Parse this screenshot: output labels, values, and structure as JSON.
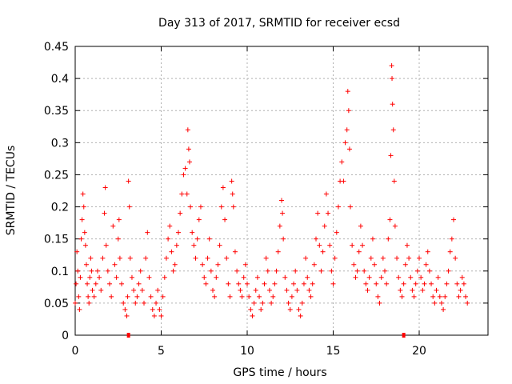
{
  "chart_data": {
    "type": "scatter",
    "title": "Day 313 of 2017, SRMTID for receiver ecsd",
    "xlabel": "GPS time / hours",
    "ylabel": "SRMTID / TECUs",
    "xlim": [
      0,
      24
    ],
    "ylim": [
      0,
      0.45
    ],
    "xticks": [
      0,
      5,
      10,
      15,
      20
    ],
    "xtick_labels": [
      "0",
      "5",
      "10",
      "15",
      "20"
    ],
    "yticks": [
      0,
      0.05,
      0.1,
      0.15,
      0.2,
      0.25,
      0.3,
      0.35,
      0.4,
      0.45
    ],
    "ytick_labels": [
      "0",
      "0.05",
      "0.1",
      "0.15",
      "0.2",
      "0.25",
      "0.3",
      "0.35",
      "0.4",
      "0.45"
    ],
    "grid": true,
    "marker": "plus",
    "color": "#ff0000",
    "gap_markers_x": [
      3.1,
      19.1
    ],
    "series": [
      {
        "name": "SRMTID",
        "points": [
          [
            0.0,
            0.05
          ],
          [
            0.05,
            0.08
          ],
          [
            0.1,
            0.13
          ],
          [
            0.15,
            0.1
          ],
          [
            0.2,
            0.06
          ],
          [
            0.25,
            0.04
          ],
          [
            0.3,
            0.09
          ],
          [
            0.35,
            0.15
          ],
          [
            0.4,
            0.18
          ],
          [
            0.45,
            0.22
          ],
          [
            0.5,
            0.2
          ],
          [
            0.55,
            0.16
          ],
          [
            0.6,
            0.14
          ],
          [
            0.65,
            0.11
          ],
          [
            0.7,
            0.08
          ],
          [
            0.75,
            0.06
          ],
          [
            0.8,
            0.05
          ],
          [
            0.85,
            0.09
          ],
          [
            0.9,
            0.12
          ],
          [
            0.95,
            0.1
          ],
          [
            1.0,
            0.07
          ],
          [
            1.1,
            0.06
          ],
          [
            1.2,
            0.08
          ],
          [
            1.3,
            0.1
          ],
          [
            1.4,
            0.09
          ],
          [
            1.5,
            0.07
          ],
          [
            1.6,
            0.12
          ],
          [
            1.7,
            0.19
          ],
          [
            1.75,
            0.23
          ],
          [
            1.8,
            0.14
          ],
          [
            1.9,
            0.1
          ],
          [
            2.0,
            0.08
          ],
          [
            2.1,
            0.06
          ],
          [
            2.2,
            0.17
          ],
          [
            2.3,
            0.11
          ],
          [
            2.4,
            0.09
          ],
          [
            2.5,
            0.15
          ],
          [
            2.55,
            0.18
          ],
          [
            2.6,
            0.12
          ],
          [
            2.7,
            0.08
          ],
          [
            2.8,
            0.05
          ],
          [
            2.9,
            0.04
          ],
          [
            3.0,
            0.03
          ],
          [
            3.05,
            0.06
          ],
          [
            3.1,
            0.24
          ],
          [
            3.15,
            0.2
          ],
          [
            3.2,
            0.12
          ],
          [
            3.3,
            0.09
          ],
          [
            3.4,
            0.07
          ],
          [
            3.5,
            0.05
          ],
          [
            3.6,
            0.06
          ],
          [
            3.7,
            0.08
          ],
          [
            3.8,
            0.1
          ],
          [
            3.9,
            0.07
          ],
          [
            4.0,
            0.05
          ],
          [
            4.1,
            0.12
          ],
          [
            4.2,
            0.16
          ],
          [
            4.3,
            0.09
          ],
          [
            4.4,
            0.06
          ],
          [
            4.5,
            0.04
          ],
          [
            4.6,
            0.03
          ],
          [
            4.7,
            0.05
          ],
          [
            4.8,
            0.07
          ],
          [
            4.9,
            0.04
          ],
          [
            5.0,
            0.03
          ],
          [
            5.1,
            0.06
          ],
          [
            5.2,
            0.09
          ],
          [
            5.3,
            0.12
          ],
          [
            5.4,
            0.15
          ],
          [
            5.5,
            0.17
          ],
          [
            5.6,
            0.13
          ],
          [
            5.7,
            0.1
          ],
          [
            5.8,
            0.11
          ],
          [
            5.9,
            0.14
          ],
          [
            6.0,
            0.16
          ],
          [
            6.1,
            0.19
          ],
          [
            6.2,
            0.22
          ],
          [
            6.3,
            0.25
          ],
          [
            6.4,
            0.26
          ],
          [
            6.5,
            0.22
          ],
          [
            6.55,
            0.32
          ],
          [
            6.6,
            0.29
          ],
          [
            6.65,
            0.27
          ],
          [
            6.7,
            0.2
          ],
          [
            6.8,
            0.16
          ],
          [
            6.9,
            0.14
          ],
          [
            7.0,
            0.12
          ],
          [
            7.1,
            0.15
          ],
          [
            7.2,
            0.18
          ],
          [
            7.3,
            0.2
          ],
          [
            7.4,
            0.11
          ],
          [
            7.5,
            0.09
          ],
          [
            7.6,
            0.08
          ],
          [
            7.7,
            0.12
          ],
          [
            7.8,
            0.15
          ],
          [
            7.9,
            0.1
          ],
          [
            8.0,
            0.07
          ],
          [
            8.1,
            0.06
          ],
          [
            8.2,
            0.09
          ],
          [
            8.3,
            0.11
          ],
          [
            8.4,
            0.14
          ],
          [
            8.5,
            0.2
          ],
          [
            8.6,
            0.23
          ],
          [
            8.7,
            0.18
          ],
          [
            8.8,
            0.12
          ],
          [
            8.9,
            0.08
          ],
          [
            9.0,
            0.06
          ],
          [
            9.1,
            0.24
          ],
          [
            9.15,
            0.22
          ],
          [
            9.2,
            0.2
          ],
          [
            9.3,
            0.13
          ],
          [
            9.4,
            0.1
          ],
          [
            9.5,
            0.08
          ],
          [
            9.6,
            0.07
          ],
          [
            9.7,
            0.06
          ],
          [
            9.8,
            0.09
          ],
          [
            9.9,
            0.11
          ],
          [
            10.0,
            0.08
          ],
          [
            10.1,
            0.06
          ],
          [
            10.2,
            0.04
          ],
          [
            10.3,
            0.03
          ],
          [
            10.4,
            0.05
          ],
          [
            10.5,
            0.07
          ],
          [
            10.6,
            0.09
          ],
          [
            10.7,
            0.06
          ],
          [
            10.8,
            0.04
          ],
          [
            10.9,
            0.05
          ],
          [
            11.0,
            0.08
          ],
          [
            11.1,
            0.12
          ],
          [
            11.2,
            0.1
          ],
          [
            11.3,
            0.07
          ],
          [
            11.4,
            0.05
          ],
          [
            11.5,
            0.06
          ],
          [
            11.6,
            0.08
          ],
          [
            11.7,
            0.1
          ],
          [
            11.8,
            0.13
          ],
          [
            11.9,
            0.17
          ],
          [
            12.0,
            0.21
          ],
          [
            12.05,
            0.19
          ],
          [
            12.1,
            0.15
          ],
          [
            12.2,
            0.09
          ],
          [
            12.3,
            0.07
          ],
          [
            12.4,
            0.05
          ],
          [
            12.5,
            0.04
          ],
          [
            12.6,
            0.06
          ],
          [
            12.7,
            0.08
          ],
          [
            12.8,
            0.1
          ],
          [
            12.9,
            0.07
          ],
          [
            13.0,
            0.04
          ],
          [
            13.1,
            0.03
          ],
          [
            13.2,
            0.05
          ],
          [
            13.3,
            0.08
          ],
          [
            13.4,
            0.12
          ],
          [
            13.5,
            0.09
          ],
          [
            13.6,
            0.07
          ],
          [
            13.7,
            0.06
          ],
          [
            13.8,
            0.08
          ],
          [
            13.9,
            0.11
          ],
          [
            14.0,
            0.15
          ],
          [
            14.1,
            0.19
          ],
          [
            14.2,
            0.14
          ],
          [
            14.3,
            0.1
          ],
          [
            14.4,
            0.13
          ],
          [
            14.5,
            0.17
          ],
          [
            14.6,
            0.22
          ],
          [
            14.7,
            0.19
          ],
          [
            14.8,
            0.14
          ],
          [
            14.9,
            0.1
          ],
          [
            15.0,
            0.08
          ],
          [
            15.1,
            0.12
          ],
          [
            15.2,
            0.16
          ],
          [
            15.3,
            0.2
          ],
          [
            15.4,
            0.24
          ],
          [
            15.5,
            0.27
          ],
          [
            15.6,
            0.24
          ],
          [
            15.7,
            0.3
          ],
          [
            15.8,
            0.32
          ],
          [
            15.85,
            0.38
          ],
          [
            15.9,
            0.35
          ],
          [
            15.95,
            0.29
          ],
          [
            16.0,
            0.2
          ],
          [
            16.1,
            0.14
          ],
          [
            16.2,
            0.11
          ],
          [
            16.3,
            0.09
          ],
          [
            16.4,
            0.1
          ],
          [
            16.5,
            0.13
          ],
          [
            16.6,
            0.17
          ],
          [
            16.7,
            0.14
          ],
          [
            16.8,
            0.1
          ],
          [
            16.9,
            0.08
          ],
          [
            17.0,
            0.07
          ],
          [
            17.1,
            0.09
          ],
          [
            17.2,
            0.12
          ],
          [
            17.3,
            0.15
          ],
          [
            17.4,
            0.11
          ],
          [
            17.5,
            0.08
          ],
          [
            17.6,
            0.06
          ],
          [
            17.7,
            0.05
          ],
          [
            17.8,
            0.09
          ],
          [
            17.9,
            0.12
          ],
          [
            18.0,
            0.1
          ],
          [
            18.1,
            0.08
          ],
          [
            18.2,
            0.15
          ],
          [
            18.3,
            0.18
          ],
          [
            18.35,
            0.28
          ],
          [
            18.4,
            0.42
          ],
          [
            18.42,
            0.4
          ],
          [
            18.45,
            0.36
          ],
          [
            18.5,
            0.32
          ],
          [
            18.55,
            0.24
          ],
          [
            18.6,
            0.17
          ],
          [
            18.7,
            0.12
          ],
          [
            18.8,
            0.09
          ],
          [
            18.9,
            0.07
          ],
          [
            19.0,
            0.06
          ],
          [
            19.1,
            0.08
          ],
          [
            19.2,
            0.11
          ],
          [
            19.3,
            0.14
          ],
          [
            19.4,
            0.12
          ],
          [
            19.5,
            0.09
          ],
          [
            19.6,
            0.07
          ],
          [
            19.7,
            0.06
          ],
          [
            19.8,
            0.08
          ],
          [
            19.9,
            0.1
          ],
          [
            20.0,
            0.12
          ],
          [
            20.1,
            0.09
          ],
          [
            20.2,
            0.07
          ],
          [
            20.3,
            0.08
          ],
          [
            20.4,
            0.11
          ],
          [
            20.5,
            0.13
          ],
          [
            20.6,
            0.1
          ],
          [
            20.7,
            0.08
          ],
          [
            20.8,
            0.06
          ],
          [
            20.9,
            0.05
          ],
          [
            21.0,
            0.07
          ],
          [
            21.1,
            0.09
          ],
          [
            21.2,
            0.06
          ],
          [
            21.3,
            0.05
          ],
          [
            21.4,
            0.04
          ],
          [
            21.5,
            0.06
          ],
          [
            21.6,
            0.08
          ],
          [
            21.7,
            0.1
          ],
          [
            21.8,
            0.13
          ],
          [
            21.9,
            0.15
          ],
          [
            22.0,
            0.18
          ],
          [
            22.1,
            0.12
          ],
          [
            22.2,
            0.08
          ],
          [
            22.3,
            0.06
          ],
          [
            22.4,
            0.07
          ],
          [
            22.5,
            0.09
          ],
          [
            22.6,
            0.08
          ],
          [
            22.7,
            0.06
          ],
          [
            22.8,
            0.05
          ]
        ]
      }
    ]
  }
}
